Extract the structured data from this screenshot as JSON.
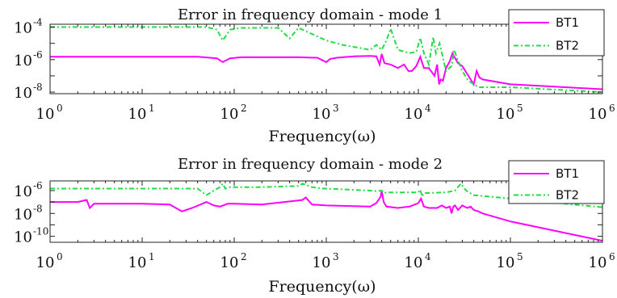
{
  "chart_data": [
    {
      "type": "line",
      "title": "Error in frequency domain - mode 1",
      "xlabel": "Frequency(ω)",
      "xscale": "log",
      "yscale": "log",
      "xlim": [
        1,
        1000000
      ],
      "ylim": [
        8e-09,
        0.00015
      ],
      "x_ticks": [
        {
          "base": "10",
          "exp": "0"
        },
        {
          "base": "10",
          "exp": "1"
        },
        {
          "base": "10",
          "exp": "2"
        },
        {
          "base": "10",
          "exp": "3"
        },
        {
          "base": "10",
          "exp": "4"
        },
        {
          "base": "10",
          "exp": "5"
        },
        {
          "base": "10",
          "exp": "6"
        }
      ],
      "y_ticks": [
        {
          "value": 1e-08,
          "base": "10",
          "exp": "-8"
        },
        {
          "value": 1e-06,
          "base": "10",
          "exp": "-6"
        },
        {
          "value": 0.0001,
          "base": "10",
          "exp": "-4"
        }
      ],
      "legend_position": "top-right",
      "series": [
        {
          "name": "BT1",
          "color": "#ff00ff",
          "style": "solid",
          "x": [
            1,
            10,
            40,
            65,
            75,
            90,
            120,
            500,
            800,
            1000,
            1100,
            1300,
            2000,
            3000,
            3500,
            3800,
            4000,
            4300,
            5000,
            6000,
            7000,
            7800,
            8500,
            9500,
            10500,
            11500,
            13000,
            15000,
            16000,
            16800,
            17500,
            18500,
            20000,
            22000,
            23500,
            24500,
            27000,
            30000,
            35000,
            40000,
            43000,
            46000,
            50000,
            100000,
            1000000
          ],
          "y": [
            1.5e-06,
            1.5e-06,
            1.5e-06,
            1.2e-06,
            7e-07,
            1.2e-06,
            1.4e-06,
            1.4e-06,
            1.3e-06,
            7e-07,
            1.1e-06,
            1.3e-06,
            1.6e-06,
            1.7e-06,
            1.6e-06,
            5e-07,
            2.2e-06,
            6e-07,
            5e-07,
            3e-07,
            5e-07,
            2e-07,
            2e-07,
            4e-07,
            1.5e-06,
            3e-07,
            3e-07,
            1e-07,
            5e-07,
            3e-08,
            6e-08,
            5e-08,
            3e-07,
            8e-07,
            2.5e-06,
            1.5e-06,
            6e-07,
            4e-07,
            1e-07,
            3e-08,
            2e-07,
            8e-08,
            6e-08,
            3e-08,
            1.5e-08
          ]
        },
        {
          "name": "BT2",
          "color": "#22dd44",
          "style": "dashed",
          "x": [
            1,
            10,
            50,
            65,
            75,
            90,
            120,
            300,
            400,
            500,
            1000,
            1500,
            3000,
            3500,
            4000,
            4500,
            5000,
            6000,
            8000,
            9500,
            10500,
            11500,
            13000,
            14500,
            15500,
            17000,
            20000,
            23000,
            24500,
            26000,
            30000,
            35000,
            45000,
            100000,
            1000000
          ],
          "y": [
            0.0001,
            0.0001,
            0.0001,
            7e-05,
            1.5e-05,
            7e-05,
            9e-05,
            9e-05,
            2e-05,
            9e-05,
            1.5e-05,
            8e-06,
            4e-06,
            8e-06,
            4e-06,
            1.5e-05,
            8e-05,
            4e-06,
            2.5e-06,
            3e-06,
            2.2e-05,
            2.5e-06,
            5e-07,
            2.5e-05,
            2.5e-06,
            1e-05,
            2e-07,
            4e-07,
            4e-06,
            1.5e-06,
            2e-07,
            5e-08,
            2e-08,
            2e-08,
            1e-08
          ]
        }
      ]
    },
    {
      "type": "line",
      "title": "Error in frequency domain - mode 2",
      "xlabel": "Frequency(ω)",
      "xscale": "log",
      "yscale": "log",
      "xlim": [
        1,
        1000000
      ],
      "ylim": [
        3e-11,
        7e-06
      ],
      "x_ticks": [
        {
          "base": "10",
          "exp": "0"
        },
        {
          "base": "10",
          "exp": "1"
        },
        {
          "base": "10",
          "exp": "2"
        },
        {
          "base": "10",
          "exp": "3"
        },
        {
          "base": "10",
          "exp": "4"
        },
        {
          "base": "10",
          "exp": "5"
        },
        {
          "base": "10",
          "exp": "6"
        }
      ],
      "y_ticks": [
        {
          "value": 1e-10,
          "base": "10",
          "exp": "-10"
        },
        {
          "value": 1e-08,
          "base": "10",
          "exp": "-8"
        },
        {
          "value": 1e-06,
          "base": "10",
          "exp": "-6"
        }
      ],
      "legend_position": "top-right",
      "series": [
        {
          "name": "BT1",
          "color": "#ff00ff",
          "style": "solid",
          "x": [
            1,
            2,
            2.5,
            2.7,
            3,
            10,
            20,
            27,
            35,
            45,
            50,
            60,
            70,
            85,
            100,
            200,
            550,
            600,
            700,
            1000,
            3000,
            3500,
            3900,
            4000,
            4200,
            4500,
            6000,
            8000,
            10000,
            10700,
            11500,
            13000,
            16000,
            18000,
            20000,
            22000,
            23000,
            24000,
            25000,
            27000,
            30000,
            34000,
            37000,
            40000,
            45000,
            50000,
            100000,
            1000000
          ],
          "y": [
            1e-07,
            1e-07,
            1.5e-07,
            3e-08,
            7e-08,
            7e-08,
            6e-08,
            1.5e-08,
            3e-08,
            7e-08,
            1e-07,
            5e-08,
            4e-08,
            7e-08,
            7e-08,
            6e-08,
            1.5e-07,
            2.5e-07,
            6e-08,
            5e-08,
            4e-08,
            8e-08,
            3e-07,
            1e-06,
            1e-07,
            4e-08,
            3e-08,
            4e-08,
            8e-08,
            2e-07,
            4e-08,
            3e-08,
            3e-08,
            5e-08,
            3e-08,
            4e-08,
            1e-08,
            4e-08,
            5e-08,
            2e-08,
            5e-08,
            3e-08,
            4e-08,
            2e-08,
            1.5e-08,
            1e-08,
            2e-09,
            4e-11
          ]
        },
        {
          "name": "BT2",
          "color": "#22dd44",
          "style": "dashed",
          "x": [
            1,
            10,
            40,
            50,
            60,
            70,
            75,
            80,
            90,
            120,
            200,
            500,
            550,
            650,
            700,
            900,
            1000,
            3000,
            3500,
            4000,
            4200,
            4500,
            10000,
            10500,
            11000,
            11500,
            20000,
            25000,
            29000,
            33000,
            40000,
            100000,
            1000000
          ],
          "y": [
            1.5e-06,
            1.5e-06,
            1.5e-06,
            4e-07,
            1e-06,
            2e-06,
            4e-06,
            1.5e-06,
            2e-06,
            2e-06,
            2e-06,
            2.5e-06,
            4e-06,
            2.5e-06,
            2e-06,
            1.5e-06,
            1.5e-06,
            1e-06,
            9e-07,
            1e-06,
            6e-07,
            7e-07,
            7e-07,
            1.2e-06,
            3e-07,
            6e-07,
            7e-07,
            1e-06,
            4e-06,
            1e-06,
            4e-07,
            2e-07,
            3.5e-08
          ]
        }
      ]
    }
  ]
}
